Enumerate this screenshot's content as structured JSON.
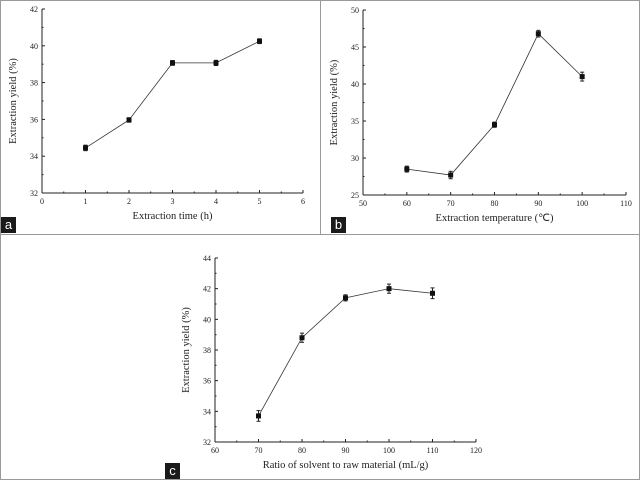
{
  "chart_data": [
    {
      "type": "line",
      "panel": "a",
      "xlabel": "Extraction time (h)",
      "ylabel": "Extraction yield (%)",
      "xlim": [
        0,
        6
      ],
      "ylim": [
        32,
        42
      ],
      "xticks": [
        0,
        1,
        2,
        3,
        4,
        5,
        6
      ],
      "yticks": [
        32,
        34,
        36,
        38,
        40,
        42
      ],
      "x": [
        1,
        2,
        3,
        4,
        5
      ],
      "y": [
        34.45,
        35.97,
        39.07,
        39.07,
        40.25
      ],
      "error": [
        0.15,
        0.12,
        0.13,
        0.14,
        0.13
      ],
      "marker": "square",
      "grid": false,
      "color": "#111111"
    },
    {
      "type": "line",
      "panel": "b",
      "xlabel": "Extraction temperature (℃)",
      "ylabel": "Extraction yield (%)",
      "xlim": [
        50,
        110
      ],
      "ylim": [
        25,
        50
      ],
      "xticks": [
        50,
        60,
        70,
        80,
        90,
        100,
        110
      ],
      "yticks": [
        25,
        30,
        35,
        40,
        45,
        50
      ],
      "x": [
        60,
        70,
        80,
        90,
        100
      ],
      "y": [
        28.5,
        27.7,
        34.5,
        46.8,
        41.0
      ],
      "error": [
        0.4,
        0.5,
        0.35,
        0.45,
        0.6
      ],
      "marker": "square",
      "grid": false,
      "color": "#111111"
    },
    {
      "type": "line",
      "panel": "c",
      "xlabel": "Ratio of solvent to raw material (mL/g)",
      "ylabel": "Extraction yield (%)",
      "xlim": [
        60,
        120
      ],
      "ylim": [
        32,
        44
      ],
      "xticks": [
        60,
        70,
        80,
        90,
        100,
        110,
        120
      ],
      "yticks": [
        32,
        34,
        36,
        38,
        40,
        42,
        44
      ],
      "x": [
        70,
        80,
        90,
        100,
        110
      ],
      "y": [
        33.7,
        38.8,
        41.4,
        42.0,
        41.7
      ],
      "error": [
        0.35,
        0.3,
        0.2,
        0.3,
        0.35
      ],
      "marker": "square",
      "grid": false,
      "color": "#111111"
    }
  ]
}
